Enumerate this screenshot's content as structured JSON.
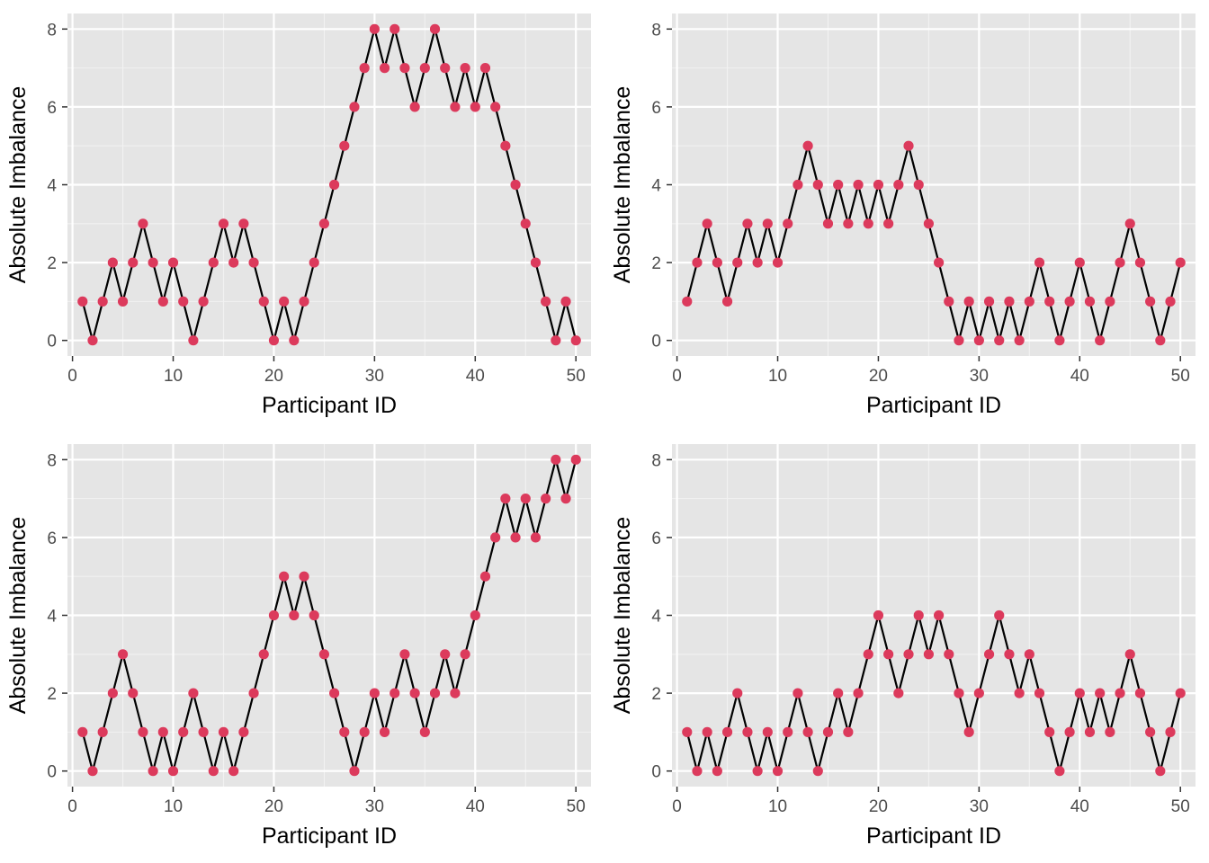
{
  "colors": {
    "panel_background": "#e5e5e5",
    "grid_major": "#ffffff",
    "grid_minor": "#f2f2f2",
    "line": "#000000",
    "point": "#dc3a5c",
    "tick_text": "#4d4d4d",
    "title_text": "#000000"
  },
  "chart_data": [
    {
      "type": "line",
      "markers": true,
      "xlabel": "Participant ID",
      "ylabel": "Absolute Imbalance",
      "xlim": [
        -0.5,
        51.5
      ],
      "ylim": [
        -0.4,
        8.4
      ],
      "x_ticks": [
        0,
        10,
        20,
        30,
        40,
        50
      ],
      "y_ticks": [
        0,
        2,
        4,
        6,
        8
      ],
      "grid": true,
      "x": [
        1,
        2,
        3,
        4,
        5,
        6,
        7,
        8,
        9,
        10,
        11,
        12,
        13,
        14,
        15,
        16,
        17,
        18,
        19,
        20,
        21,
        22,
        23,
        24,
        25,
        26,
        27,
        28,
        29,
        30,
        31,
        32,
        33,
        34,
        35,
        36,
        37,
        38,
        39,
        40,
        41,
        42,
        43,
        44,
        45,
        46,
        47,
        48,
        49,
        50
      ],
      "values": [
        1,
        0,
        1,
        2,
        1,
        2,
        3,
        2,
        1,
        2,
        1,
        0,
        1,
        2,
        3,
        2,
        3,
        2,
        1,
        0,
        1,
        0,
        1,
        2,
        3,
        4,
        5,
        6,
        7,
        8,
        7,
        8,
        7,
        6,
        7,
        8,
        7,
        6,
        7,
        6,
        7,
        6,
        5,
        4,
        3,
        2,
        1,
        0,
        1,
        0
      ]
    },
    {
      "type": "line",
      "markers": true,
      "xlabel": "Participant ID",
      "ylabel": "Absolute Imbalance",
      "xlim": [
        -0.5,
        51.5
      ],
      "ylim": [
        -0.4,
        8.4
      ],
      "x_ticks": [
        0,
        10,
        20,
        30,
        40,
        50
      ],
      "y_ticks": [
        0,
        2,
        4,
        6,
        8
      ],
      "grid": true,
      "x": [
        1,
        2,
        3,
        4,
        5,
        6,
        7,
        8,
        9,
        10,
        11,
        12,
        13,
        14,
        15,
        16,
        17,
        18,
        19,
        20,
        21,
        22,
        23,
        24,
        25,
        26,
        27,
        28,
        29,
        30,
        31,
        32,
        33,
        34,
        35,
        36,
        37,
        38,
        39,
        40,
        41,
        42,
        43,
        44,
        45,
        46,
        47,
        48,
        49,
        50
      ],
      "values": [
        1,
        2,
        3,
        2,
        1,
        2,
        3,
        2,
        3,
        2,
        3,
        4,
        5,
        4,
        3,
        4,
        3,
        4,
        3,
        4,
        3,
        4,
        5,
        4,
        3,
        2,
        1,
        0,
        1,
        0,
        1,
        0,
        1,
        0,
        1,
        2,
        1,
        0,
        1,
        2,
        1,
        0,
        1,
        2,
        3,
        2,
        1,
        0,
        1,
        2
      ]
    },
    {
      "type": "line",
      "markers": true,
      "xlabel": "Participant ID",
      "ylabel": "Absolute Imbalance",
      "xlim": [
        -0.5,
        51.5
      ],
      "ylim": [
        -0.4,
        8.4
      ],
      "x_ticks": [
        0,
        10,
        20,
        30,
        40,
        50
      ],
      "y_ticks": [
        0,
        2,
        4,
        6,
        8
      ],
      "grid": true,
      "x": [
        1,
        2,
        3,
        4,
        5,
        6,
        7,
        8,
        9,
        10,
        11,
        12,
        13,
        14,
        15,
        16,
        17,
        18,
        19,
        20,
        21,
        22,
        23,
        24,
        25,
        26,
        27,
        28,
        29,
        30,
        31,
        32,
        33,
        34,
        35,
        36,
        37,
        38,
        39,
        40,
        41,
        42,
        43,
        44,
        45,
        46,
        47,
        48,
        49,
        50
      ],
      "values": [
        1,
        0,
        1,
        2,
        3,
        2,
        1,
        0,
        1,
        0,
        1,
        2,
        1,
        0,
        1,
        0,
        1,
        2,
        3,
        4,
        5,
        4,
        5,
        4,
        3,
        2,
        1,
        0,
        1,
        2,
        1,
        2,
        3,
        2,
        1,
        2,
        3,
        2,
        3,
        4,
        5,
        6,
        7,
        6,
        7,
        6,
        7,
        8,
        7,
        8
      ]
    },
    {
      "type": "line",
      "markers": true,
      "xlabel": "Participant ID",
      "ylabel": "Absolute Imbalance",
      "xlim": [
        -0.5,
        51.5
      ],
      "ylim": [
        -0.4,
        8.4
      ],
      "x_ticks": [
        0,
        10,
        20,
        30,
        40,
        50
      ],
      "y_ticks": [
        0,
        2,
        4,
        6,
        8
      ],
      "grid": true,
      "x": [
        1,
        2,
        3,
        4,
        5,
        6,
        7,
        8,
        9,
        10,
        11,
        12,
        13,
        14,
        15,
        16,
        17,
        18,
        19,
        20,
        21,
        22,
        23,
        24,
        25,
        26,
        27,
        28,
        29,
        30,
        31,
        32,
        33,
        34,
        35,
        36,
        37,
        38,
        39,
        40,
        41,
        42,
        43,
        44,
        45,
        46,
        47,
        48,
        49,
        50
      ],
      "values": [
        1,
        0,
        1,
        0,
        1,
        2,
        1,
        0,
        1,
        0,
        1,
        2,
        1,
        0,
        1,
        2,
        1,
        2,
        3,
        4,
        3,
        2,
        3,
        4,
        3,
        4,
        3,
        2,
        1,
        2,
        3,
        4,
        3,
        2,
        3,
        2,
        1,
        0,
        1,
        2,
        1,
        2,
        1,
        2,
        3,
        2,
        1,
        0,
        1,
        2
      ]
    }
  ]
}
